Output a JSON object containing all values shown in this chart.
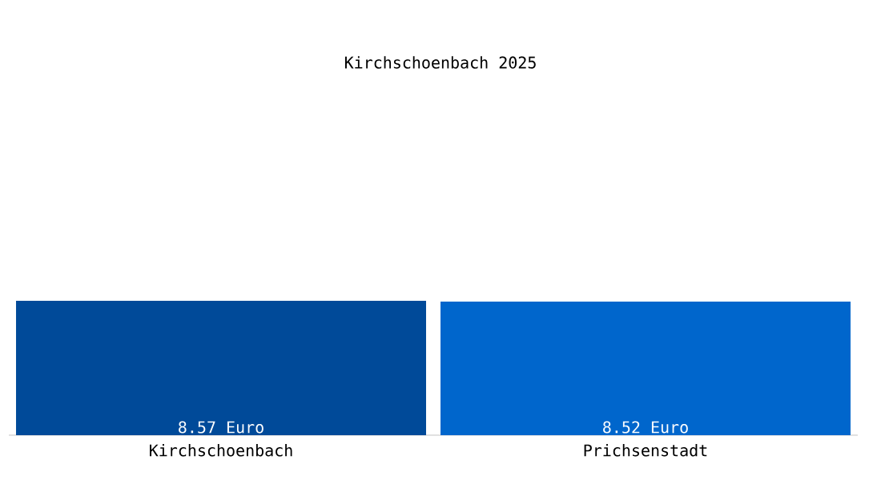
{
  "chart_data": {
    "type": "bar",
    "title": "Kirchschoenbach 2025",
    "categories": [
      "Kirchschoenbach",
      "Prichsenstadt"
    ],
    "values": [
      8.57,
      8.52
    ],
    "colors": [
      "#004a99",
      "#0066cc"
    ],
    "value_labels": [
      "8.57 Euro",
      "8.52 Euro"
    ]
  }
}
